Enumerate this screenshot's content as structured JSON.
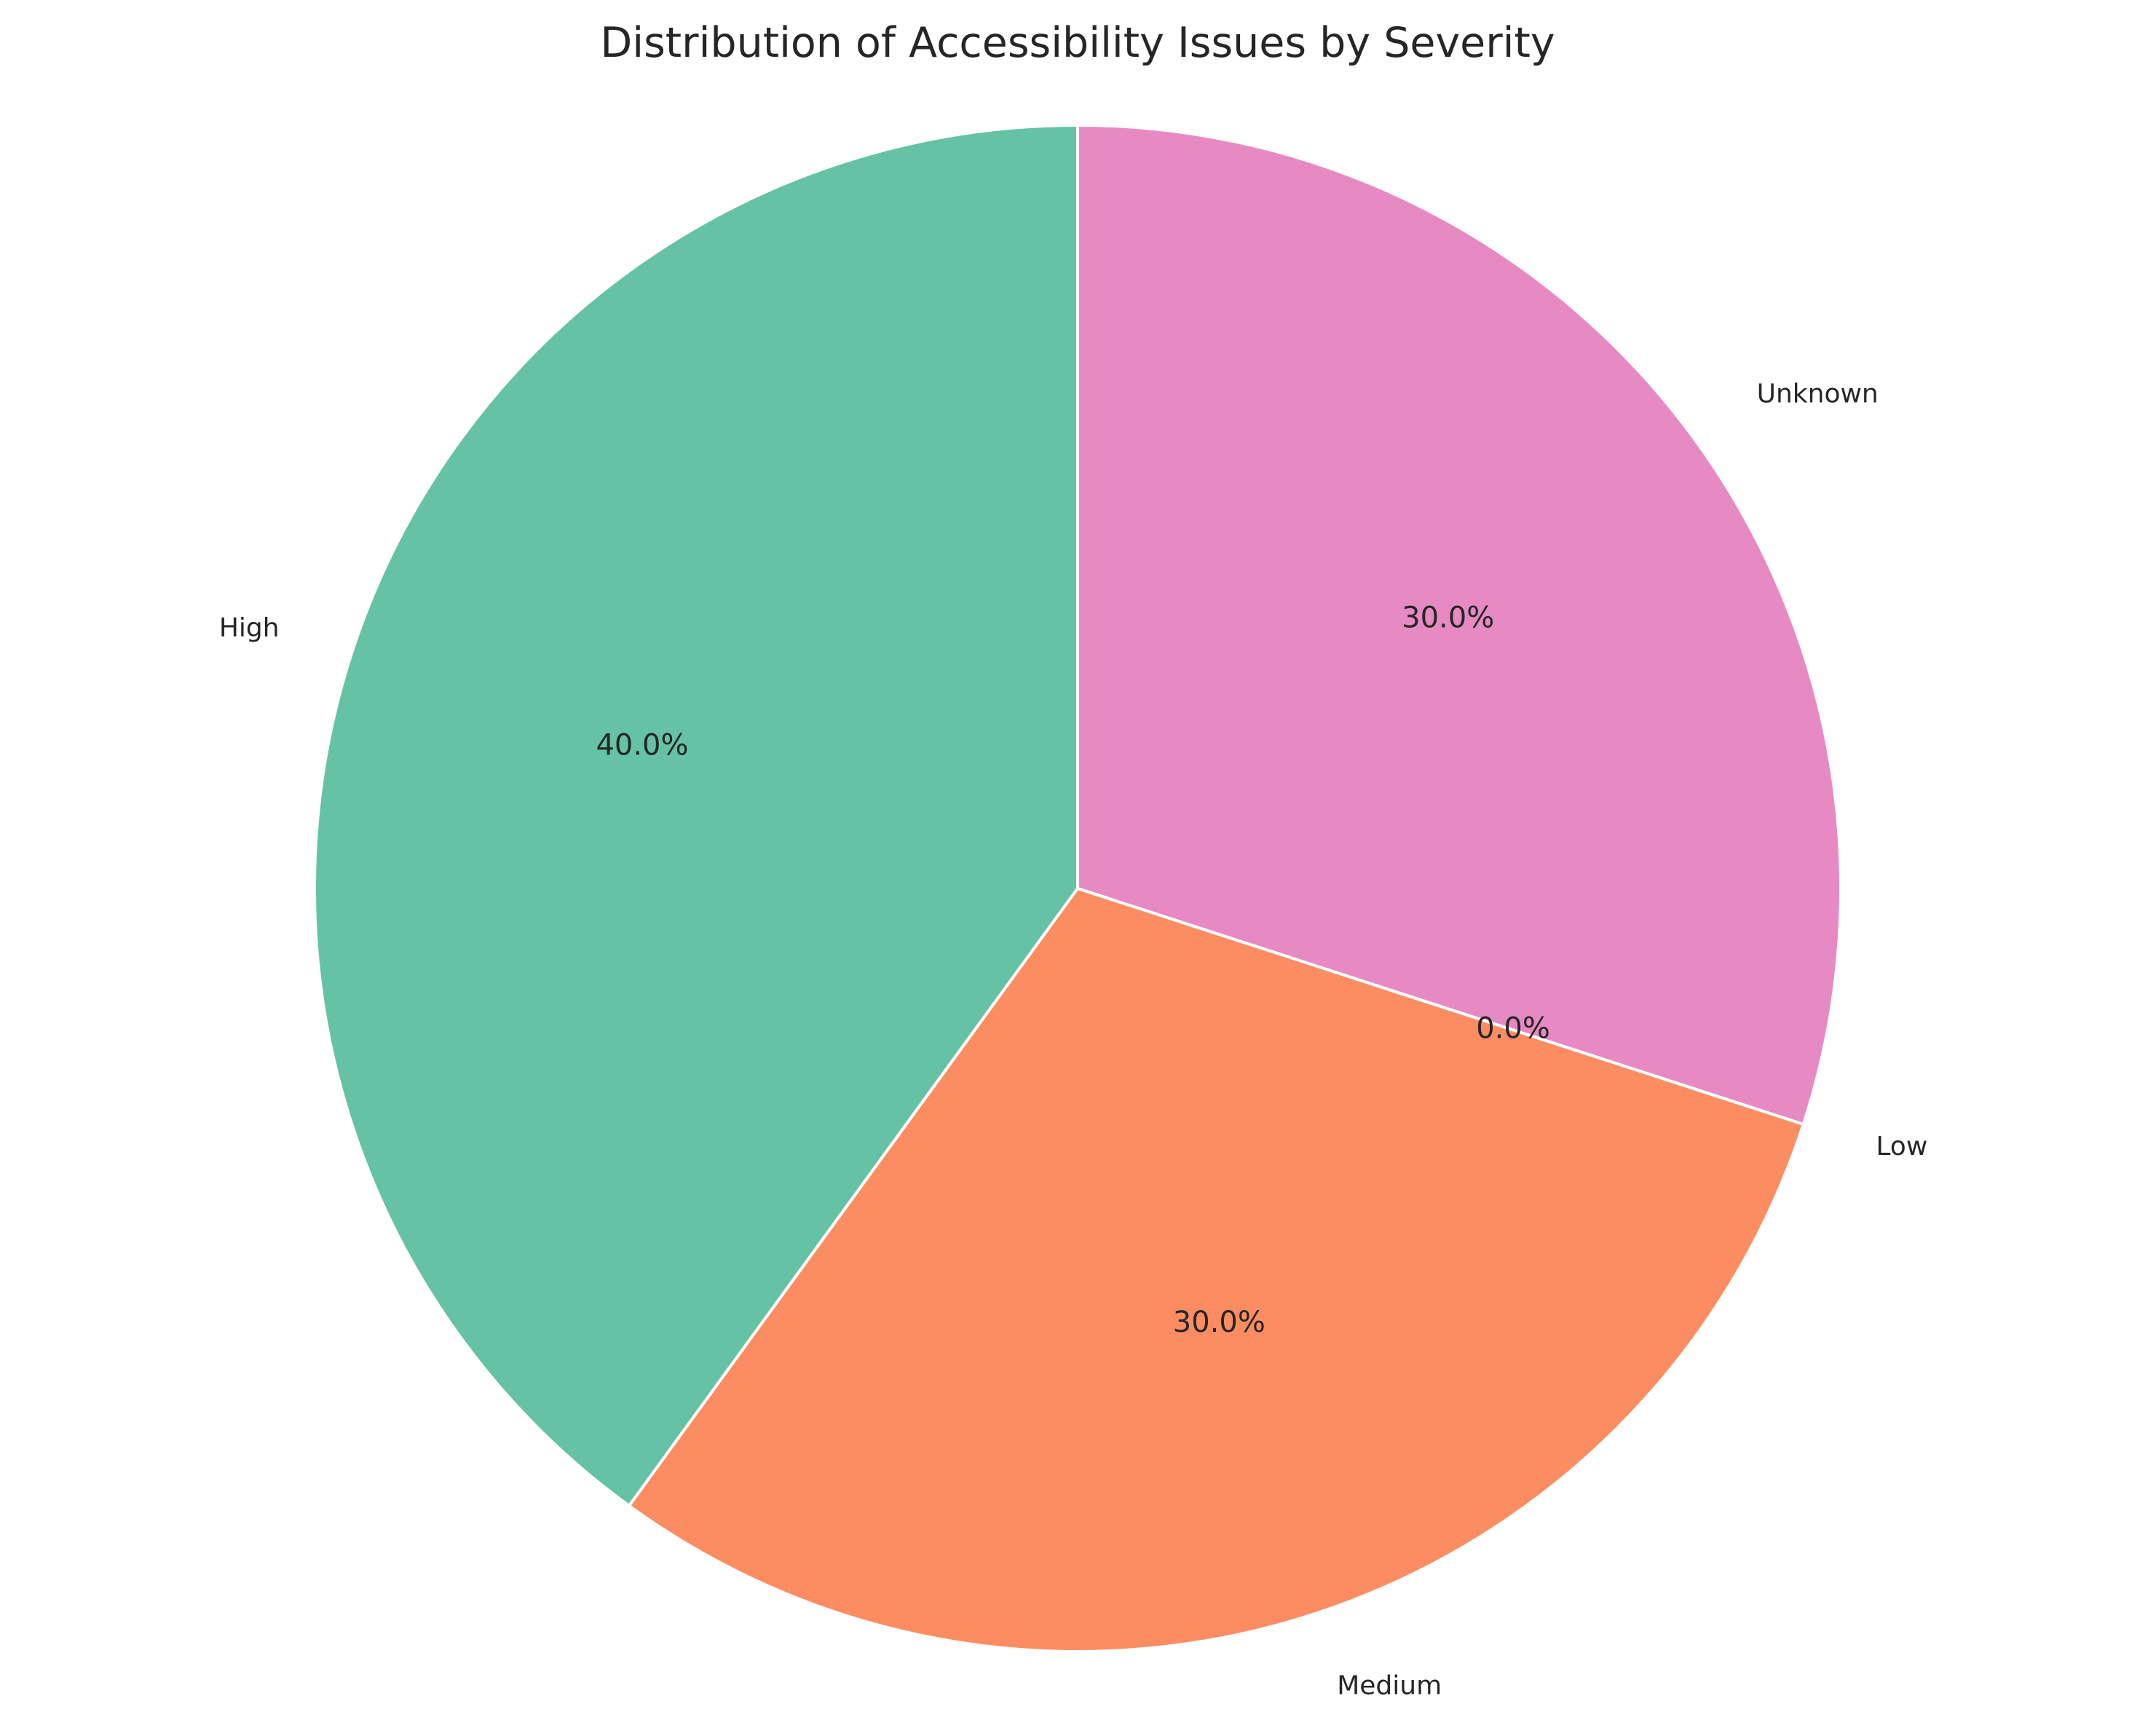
{
  "chart_data": {
    "type": "pie",
    "title": "Distribution of Accessibility Issues by Severity",
    "start_angle_deg": 90,
    "direction": "counterclockwise",
    "slices": [
      {
        "label": "High",
        "value": 40.0,
        "pct_text": "40.0%",
        "color": "#66c2a5"
      },
      {
        "label": "Medium",
        "value": 30.0,
        "pct_text": "30.0%",
        "color": "#fc8d62"
      },
      {
        "label": "Low",
        "value": 0.0,
        "pct_text": "0.0%",
        "color": "#8da0cb"
      },
      {
        "label": "Unknown",
        "value": 30.0,
        "pct_text": "30.0%",
        "color": "#e78ac3"
      }
    ]
  }
}
